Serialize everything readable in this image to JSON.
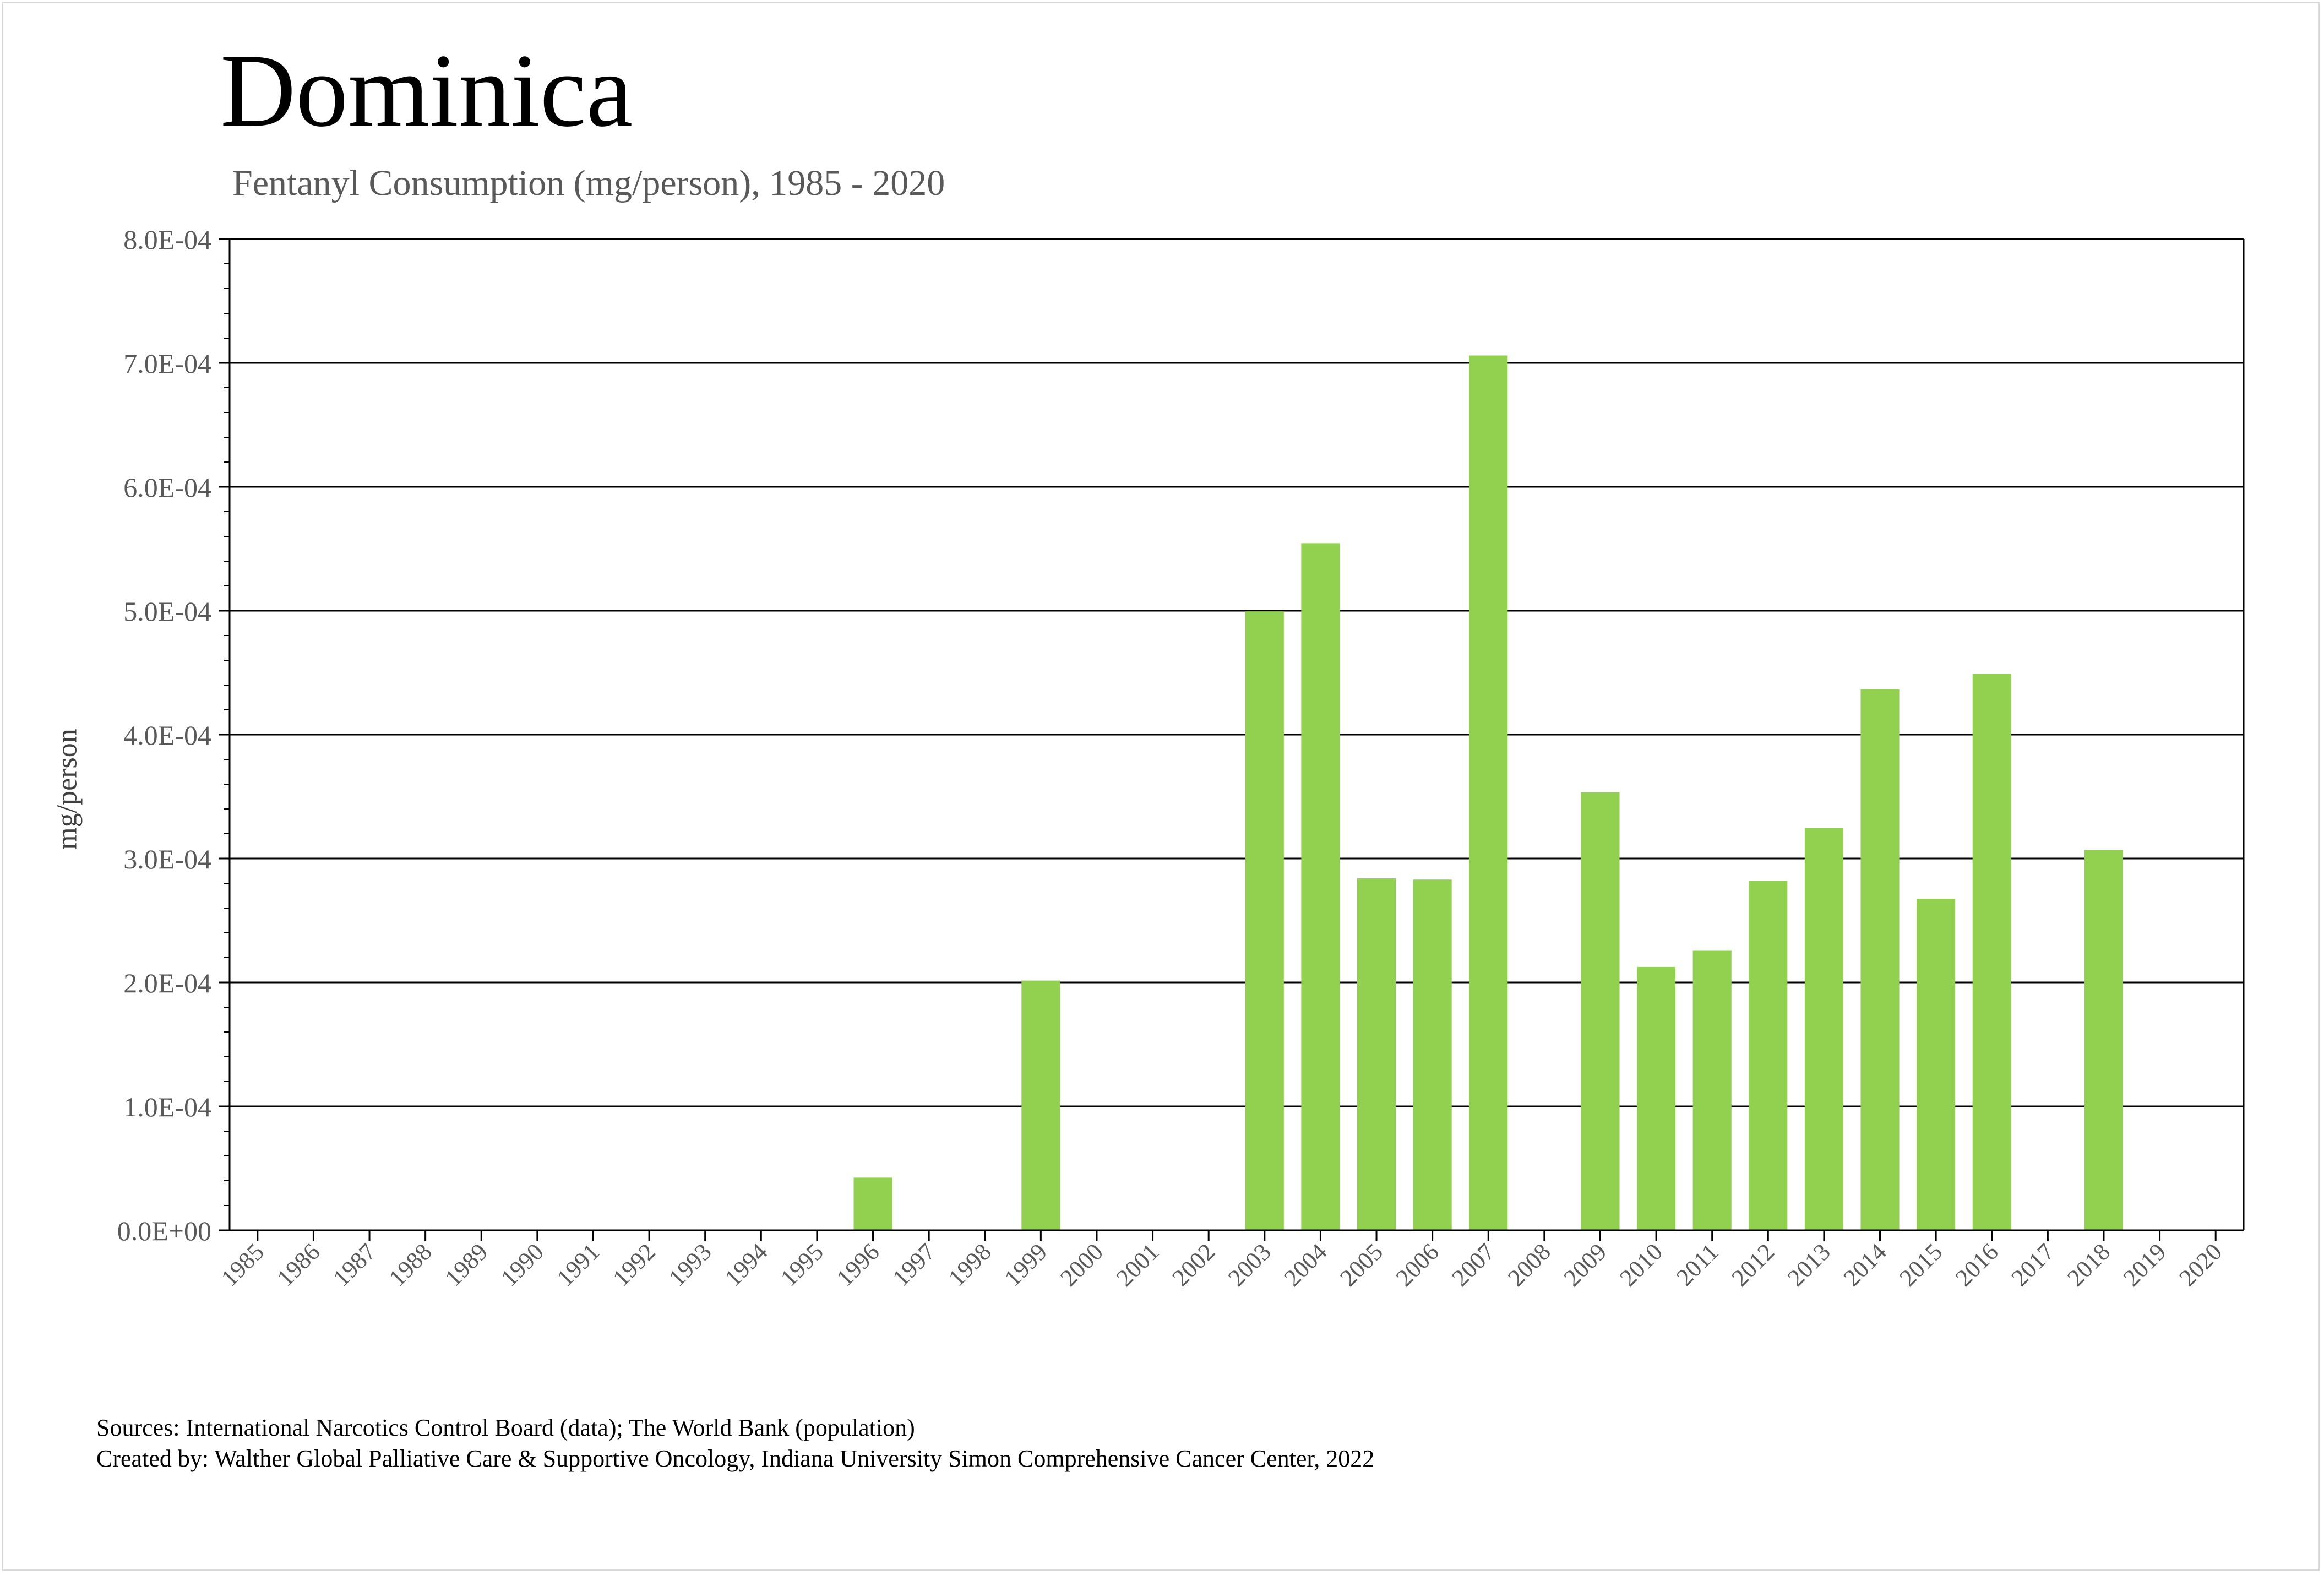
{
  "title": "Dominica",
  "subtitle": "Fentanyl Consumption (mg/person), 1985 - 2020",
  "sources_line1": "Sources: International Narcotics Control Board (data); The World Bank (population)",
  "sources_line2": "Created by: Walther Global Palliative Care & Supportive Oncology, Indiana University Simon Comprehensive Cancer Center, 2022",
  "colors": {
    "bar": "#92d050",
    "grid": "#000000",
    "tick_text": "#595959",
    "title": "#000000",
    "subtitle": "#595959"
  },
  "chart_data": {
    "type": "bar",
    "title": "Dominica",
    "subtitle": "Fentanyl Consumption (mg/person), 1985 - 2020",
    "xlabel": "",
    "ylabel": "mg/person",
    "ylim": [
      0,
      0.0008
    ],
    "yticks": [
      "0.0E+00",
      "1.0E-04",
      "2.0E-04",
      "3.0E-04",
      "4.0E-04",
      "5.0E-04",
      "6.0E-04",
      "7.0E-04",
      "8.0E-04"
    ],
    "grid": true,
    "legend": "none",
    "categories": [
      "1985",
      "1986",
      "1987",
      "1988",
      "1989",
      "1990",
      "1991",
      "1992",
      "1993",
      "1994",
      "1995",
      "1996",
      "1997",
      "1998",
      "1999",
      "2000",
      "2001",
      "2002",
      "2003",
      "2004",
      "2005",
      "2006",
      "2007",
      "2008",
      "2009",
      "2010",
      "2011",
      "2012",
      "2013",
      "2014",
      "2015",
      "2016",
      "2017",
      "2018",
      "2019",
      "2020"
    ],
    "values": [
      0,
      0,
      0,
      0,
      0,
      0,
      0,
      0,
      0,
      0,
      0,
      4.25e-05,
      0,
      0,
      0.0002015,
      0,
      0,
      0,
      0.0004995,
      0.0005545,
      0.000284,
      0.000283,
      0.000706,
      0,
      0.0003535,
      0.0002125,
      0.000226,
      0.000282,
      0.0003245,
      0.0004365,
      0.0002675,
      0.000449,
      0,
      0.000307,
      0,
      0
    ]
  }
}
